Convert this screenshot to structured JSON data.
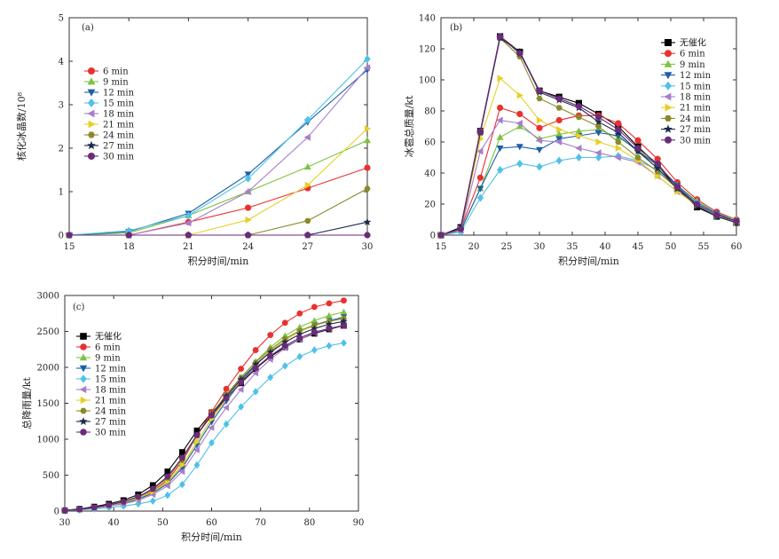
{
  "chart_data": [
    {
      "type": "line",
      "panel_label": "(a)",
      "xlabel": "积分时间/min",
      "ylabel": "核化冰晶数/10⁸",
      "xlim": [
        15,
        30
      ],
      "ylim": [
        0,
        5
      ],
      "xticks": [
        15,
        18,
        21,
        24,
        27,
        30
      ],
      "yticks": [
        0,
        1,
        2,
        3,
        4,
        5
      ],
      "x": [
        15,
        18,
        21,
        24,
        27,
        30
      ],
      "legend_position": "upper-left",
      "series": [
        {
          "name": "6  min",
          "color": "#e8312e",
          "marker": "circle",
          "x": [
            15,
            18,
            21,
            24,
            27,
            30
          ],
          "values": [
            0,
            0,
            0.3,
            0.63,
            1.08,
            1.55
          ]
        },
        {
          "name": "9  min",
          "color": "#7dc242",
          "marker": "triangle-up",
          "x": [
            15,
            18,
            21,
            24,
            27,
            30
          ],
          "values": [
            0,
            0.05,
            0.45,
            1.0,
            1.57,
            2.18
          ]
        },
        {
          "name": "12  min",
          "color": "#1d5fa8",
          "marker": "triangle-down",
          "x": [
            15,
            18,
            21,
            24,
            27,
            30
          ],
          "values": [
            0,
            0.08,
            0.5,
            1.4,
            2.6,
            3.8
          ]
        },
        {
          "name": "15  min",
          "color": "#4fc1e9",
          "marker": "diamond",
          "x": [
            15,
            18,
            21,
            24,
            27,
            30
          ],
          "values": [
            0,
            0.1,
            0.45,
            1.3,
            2.65,
            4.05
          ]
        },
        {
          "name": "18  min",
          "color": "#a87dc9",
          "marker": "triangle-left",
          "x": [
            15,
            18,
            21,
            24,
            27,
            30
          ],
          "values": [
            0,
            0,
            0.28,
            1.0,
            2.25,
            3.85
          ]
        },
        {
          "name": "21  min",
          "color": "#e6d027",
          "marker": "triangle-right",
          "x": [
            15,
            18,
            21,
            24,
            27,
            30
          ],
          "values": [
            0,
            0,
            0,
            0.35,
            1.15,
            2.45
          ]
        },
        {
          "name": "24  min",
          "color": "#8a8a2a",
          "marker": "hexagon",
          "x": [
            15,
            18,
            21,
            24,
            27,
            30
          ],
          "values": [
            0,
            0,
            0,
            0,
            0.33,
            1.07
          ]
        },
        {
          "name": "27  min",
          "color": "#1a2a4a",
          "marker": "star",
          "x": [
            15,
            18,
            21,
            24,
            27,
            30
          ],
          "values": [
            0,
            0,
            0,
            0,
            0,
            0.3
          ]
        },
        {
          "name": "30  min",
          "color": "#6b2a7a",
          "marker": "circle",
          "x": [
            15,
            18,
            21,
            24,
            27,
            30
          ],
          "values": [
            0,
            0,
            0,
            0,
            0,
            0
          ]
        }
      ]
    },
    {
      "type": "line",
      "panel_label": "(b)",
      "xlabel": "积分时间/min",
      "ylabel": "冰雹总质量/kt",
      "xlim": [
        15,
        60
      ],
      "ylim": [
        0,
        140
      ],
      "xticks": [
        15,
        20,
        25,
        30,
        35,
        40,
        45,
        50,
        55,
        60
      ],
      "yticks": [
        0,
        20,
        40,
        60,
        80,
        100,
        120,
        140
      ],
      "x": [
        15,
        18,
        21,
        24,
        27,
        30,
        33,
        36,
        39,
        42,
        45,
        48,
        51,
        54,
        57,
        60
      ],
      "legend_position": "upper-right",
      "series": [
        {
          "name": "无催化",
          "color": "#000000",
          "marker": "square",
          "values": [
            0,
            5,
            67,
            128,
            118,
            93,
            89,
            85,
            78,
            70,
            57,
            45,
            30,
            18,
            12,
            8
          ]
        },
        {
          "name": "6  min",
          "color": "#e8312e",
          "marker": "circle",
          "values": [
            0,
            4,
            37,
            82,
            78,
            69,
            74,
            77,
            77,
            72,
            61,
            49,
            34,
            23,
            15,
            10
          ]
        },
        {
          "name": "9  min",
          "color": "#7dc242",
          "marker": "triangle-up",
          "values": [
            0,
            3,
            30,
            63,
            70,
            62,
            65,
            67,
            68,
            63,
            55,
            45,
            32,
            22,
            14,
            10
          ]
        },
        {
          "name": "12  min",
          "color": "#1d5fa8",
          "marker": "triangle-down",
          "values": [
            0,
            3,
            30,
            56,
            57,
            55,
            62,
            64,
            66,
            64,
            54,
            45,
            32,
            21,
            14,
            9
          ]
        },
        {
          "name": "15  min",
          "color": "#4fc1e9",
          "marker": "diamond",
          "values": [
            0,
            2,
            24,
            42,
            46,
            44,
            48,
            50,
            50,
            51,
            48,
            42,
            31,
            21,
            13,
            9
          ]
        },
        {
          "name": "18  min",
          "color": "#a87dc9",
          "marker": "triangle-left",
          "values": [
            0,
            3,
            54,
            74,
            72,
            61,
            60,
            56,
            53,
            50,
            47,
            38,
            28,
            20,
            13,
            8
          ]
        },
        {
          "name": "21  min",
          "color": "#e6d027",
          "marker": "triangle-right",
          "values": [
            0,
            4,
            62,
            101,
            90,
            74,
            68,
            64,
            60,
            56,
            48,
            38,
            28,
            19,
            12,
            8
          ]
        },
        {
          "name": "24  min",
          "color": "#8a8a2a",
          "marker": "hexagon",
          "values": [
            0,
            4,
            66,
            127,
            115,
            88,
            82,
            76,
            70,
            60,
            50,
            41,
            30,
            20,
            13,
            9
          ]
        },
        {
          "name": "27  min",
          "color": "#1a2a4a",
          "marker": "star",
          "values": [
            0,
            4,
            66,
            127,
            118,
            92,
            87,
            82,
            73,
            66,
            54,
            43,
            30,
            19,
            12,
            8
          ]
        },
        {
          "name": "30  min",
          "color": "#6b2a7a",
          "marker": "circle",
          "values": [
            0,
            4,
            67,
            128,
            117,
            93,
            88,
            83,
            76,
            68,
            56,
            46,
            31,
            20,
            13,
            9
          ]
        }
      ]
    },
    {
      "type": "line",
      "panel_label": "(c)",
      "xlabel": "积分时间/min",
      "ylabel": "总降雨量/kt",
      "xlim": [
        30,
        90
      ],
      "ylim": [
        0,
        3000
      ],
      "xticks": [
        30,
        40,
        50,
        60,
        70,
        80,
        90
      ],
      "yticks": [
        0,
        500,
        1000,
        1500,
        2000,
        2500,
        3000
      ],
      "x": [
        30,
        33,
        36,
        39,
        42,
        45,
        48,
        51,
        54,
        57,
        60,
        63,
        66,
        69,
        72,
        75,
        78,
        81,
        84,
        87
      ],
      "legend_position": "upper-left",
      "series": [
        {
          "name": "无催化",
          "color": "#000000",
          "marker": "square",
          "values": [
            10,
            30,
            60,
            100,
            150,
            230,
            360,
            550,
            820,
            1120,
            1370,
            1580,
            1780,
            1980,
            2150,
            2280,
            2390,
            2470,
            2530,
            2580
          ]
        },
        {
          "name": "6  min",
          "color": "#e8312e",
          "marker": "circle",
          "values": [
            5,
            20,
            45,
            80,
            120,
            180,
            280,
            430,
            690,
            1050,
            1380,
            1700,
            1980,
            2240,
            2450,
            2620,
            2750,
            2840,
            2890,
            2930
          ]
        },
        {
          "name": "9  min",
          "color": "#7dc242",
          "marker": "triangle-up",
          "values": [
            5,
            20,
            40,
            70,
            110,
            170,
            260,
            400,
            630,
            960,
            1290,
            1580,
            1850,
            2080,
            2280,
            2440,
            2560,
            2650,
            2720,
            2770
          ]
        },
        {
          "name": "12  min",
          "color": "#1d5fa8",
          "marker": "triangle-down",
          "values": [
            5,
            20,
            40,
            70,
            110,
            165,
            250,
            380,
            600,
            920,
            1240,
            1530,
            1800,
            2030,
            2220,
            2380,
            2500,
            2590,
            2650,
            2700
          ]
        },
        {
          "name": "15  min",
          "color": "#4fc1e9",
          "marker": "diamond",
          "values": [
            5,
            15,
            30,
            50,
            70,
            100,
            140,
            220,
            370,
            640,
            950,
            1210,
            1450,
            1660,
            1860,
            2020,
            2150,
            2240,
            2300,
            2340
          ]
        },
        {
          "name": "18  min",
          "color": "#a87dc9",
          "marker": "triangle-left",
          "values": [
            5,
            20,
            40,
            70,
            100,
            150,
            230,
            350,
            550,
            850,
            1160,
            1440,
            1690,
            1920,
            2110,
            2270,
            2390,
            2480,
            2540,
            2590
          ]
        },
        {
          "name": "21  min",
          "color": "#e6d027",
          "marker": "triangle-right",
          "values": [
            5,
            25,
            50,
            80,
            120,
            180,
            270,
            410,
            640,
            960,
            1280,
            1560,
            1820,
            2040,
            2230,
            2380,
            2500,
            2580,
            2640,
            2680
          ]
        },
        {
          "name": "24  min",
          "color": "#8a8a2a",
          "marker": "hexagon",
          "values": [
            5,
            25,
            50,
            85,
            130,
            195,
            300,
            460,
            720,
            1050,
            1350,
            1620,
            1860,
            2070,
            2250,
            2400,
            2510,
            2590,
            2640,
            2680
          ]
        },
        {
          "name": "27  min",
          "color": "#1a2a4a",
          "marker": "star",
          "values": [
            5,
            25,
            50,
            85,
            130,
            200,
            310,
            480,
            740,
            1060,
            1340,
            1600,
            1830,
            2040,
            2210,
            2350,
            2460,
            2540,
            2600,
            2640
          ]
        },
        {
          "name": "30  min",
          "color": "#6b2a7a",
          "marker": "circle",
          "values": [
            5,
            25,
            50,
            85,
            130,
            200,
            310,
            480,
            740,
            1060,
            1330,
            1570,
            1790,
            1990,
            2160,
            2300,
            2410,
            2490,
            2540,
            2580
          ]
        }
      ]
    }
  ]
}
